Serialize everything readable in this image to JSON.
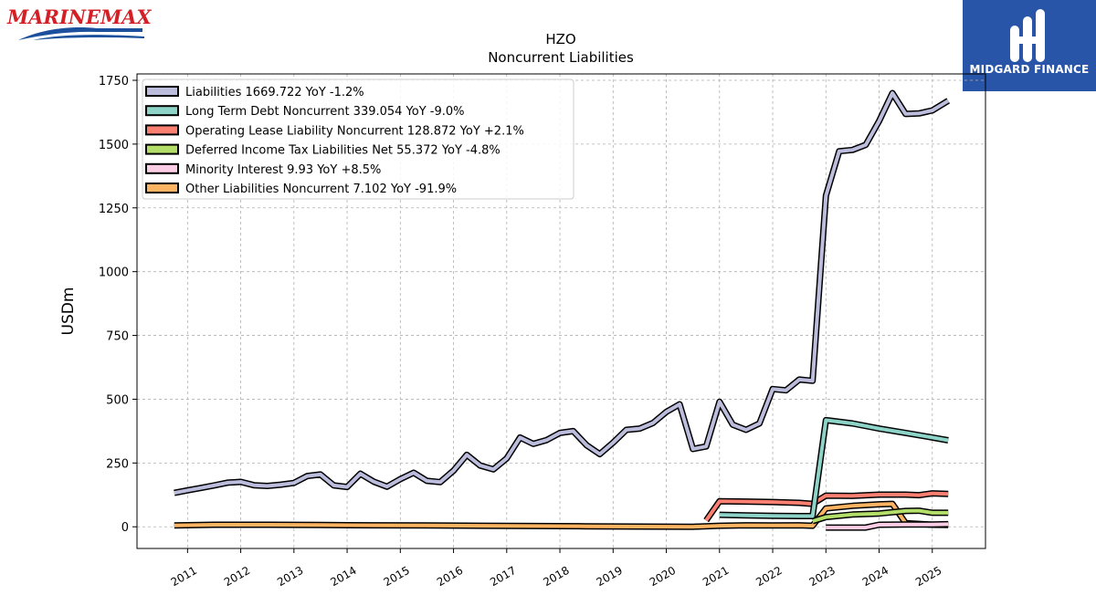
{
  "branding": {
    "left_logo_text": "MARINEMAX",
    "right_logo_text": "MIDGARD FINANCE"
  },
  "chart_data": {
    "type": "line",
    "title": "HZO",
    "subtitle": "Noncurrent  Liabilities",
    "ylabel": "USDm",
    "xlabel": "",
    "xlim": [
      2010.05,
      2026.0
    ],
    "ylim": [
      -85,
      1775
    ],
    "yticks": [
      0,
      250,
      500,
      750,
      1000,
      1250,
      1500,
      1750
    ],
    "xticks": [
      "2011",
      "2012",
      "2013",
      "2014",
      "2015",
      "2016",
      "2017",
      "2018",
      "2019",
      "2020",
      "2021",
      "2022",
      "2023",
      "2024",
      "2025"
    ],
    "grid": true,
    "legend_position": "top-left",
    "series": [
      {
        "name": "Liabilities",
        "legend": "Liabilities  1669.722 YoY -1.2%",
        "color": "#bcbddc",
        "x": [
          2010.75,
          2011.0,
          2011.25,
          2011.5,
          2011.75,
          2012.0,
          2012.25,
          2012.5,
          2012.75,
          2013.0,
          2013.25,
          2013.5,
          2013.75,
          2014.0,
          2014.25,
          2014.5,
          2014.75,
          2015.0,
          2015.25,
          2015.5,
          2015.75,
          2016.0,
          2016.25,
          2016.5,
          2016.75,
          2017.0,
          2017.25,
          2017.5,
          2017.75,
          2018.0,
          2018.25,
          2018.5,
          2018.75,
          2019.0,
          2019.25,
          2019.5,
          2019.75,
          2020.0,
          2020.25,
          2020.5,
          2020.75,
          2021.0,
          2021.25,
          2021.5,
          2021.75,
          2022.0,
          2022.25,
          2022.5,
          2022.75,
          2023.0,
          2023.25,
          2023.5,
          2023.75,
          2024.0,
          2024.25,
          2024.5,
          2024.75,
          2025.0,
          2025.3
        ],
        "values": [
          133,
          143,
          152,
          162,
          173,
          176,
          163,
          160,
          165,
          172,
          199,
          205,
          162,
          156,
          208,
          177,
          157,
          187,
          212,
          180,
          175,
          220,
          282,
          240,
          225,
          268,
          350,
          325,
          340,
          368,
          375,
          320,
          285,
          330,
          380,
          385,
          407,
          450,
          480,
          305,
          315,
          490,
          400,
          380,
          405,
          540,
          535,
          577,
          572,
          1298,
          1472,
          1477,
          1497,
          1590,
          1700,
          1618,
          1620,
          1632,
          1670
        ]
      },
      {
        "name": "Long Term Debt Noncurrent",
        "legend": "Long Term Debt Noncurrent  339.054 YoY -9.0%",
        "color": "#8dd3c7",
        "x": [
          2021.0,
          2021.5,
          2022.0,
          2022.5,
          2022.75,
          2023.0,
          2023.5,
          2024.0,
          2024.5,
          2025.0,
          2025.3
        ],
        "values": [
          47,
          45,
          43,
          42,
          42,
          418,
          405,
          385,
          368,
          350,
          339
        ]
      },
      {
        "name": "Operating Lease Liability Noncurrent",
        "legend": "Operating Lease Liability Noncurrent  128.872 YoY +2.1%",
        "color": "#fb8072",
        "x": [
          2020.75,
          2021.0,
          2021.5,
          2022.0,
          2022.5,
          2022.75,
          2023.0,
          2023.5,
          2024.0,
          2024.5,
          2024.75,
          2025.0,
          2025.3
        ],
        "values": [
          25,
          100,
          99,
          97,
          94,
          90,
          122,
          121,
          126,
          126,
          124,
          131,
          129
        ]
      },
      {
        "name": "Deferred Income Tax Liabilities Net",
        "legend": "Deferred Income Tax Liabilities Net  55.372 YoY -4.8%",
        "color": "#b3de69",
        "x": [
          2022.75,
          2023.0,
          2023.5,
          2024.0,
          2024.5,
          2024.75,
          2025.0,
          2025.3
        ],
        "values": [
          22,
          38,
          48,
          52,
          62,
          63,
          55,
          55
        ]
      },
      {
        "name": "Minority Interest",
        "legend": "Minority Interest  9.93 YoY +8.5%",
        "color": "#fccde5",
        "x": [
          2023.0,
          2023.5,
          2023.75,
          2024.0,
          2024.5,
          2025.0,
          2025.3
        ],
        "values": [
          -3,
          -3,
          -3,
          8,
          9,
          9,
          10
        ]
      },
      {
        "name": "Other Liabilities Noncurrent",
        "legend": "Other Liabilities Noncurrent  7.102 YoY -91.9%",
        "color": "#fdb462",
        "x": [
          2010.75,
          2011.5,
          2012.5,
          2013.5,
          2014.5,
          2015.5,
          2016.5,
          2017.5,
          2018.5,
          2019.5,
          2020.5,
          2021.0,
          2021.5,
          2022.0,
          2022.5,
          2022.75,
          2023.0,
          2023.5,
          2024.0,
          2024.25,
          2024.5,
          2025.0,
          2025.3
        ],
        "values": [
          5,
          8,
          8,
          7,
          6,
          5,
          4,
          3,
          2,
          1,
          0,
          4,
          6,
          5,
          6,
          4,
          72,
          82,
          88,
          90,
          14,
          8,
          7
        ]
      }
    ]
  }
}
